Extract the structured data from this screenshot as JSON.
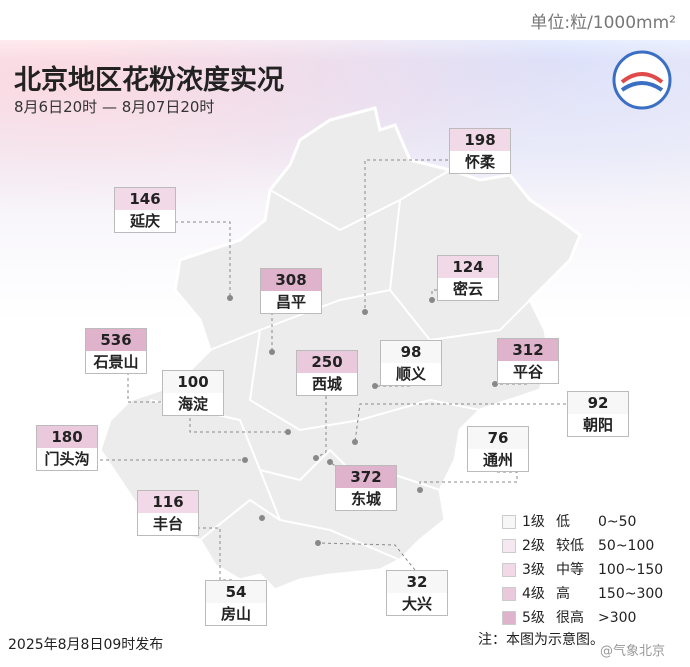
{
  "unit": "单位:粒/1000mm²",
  "title": "北京地区花粉浓度实况",
  "period": "8月6日20时 — 8月07日20时",
  "districts": [
    {
      "name": "怀柔",
      "value": 198
    },
    {
      "name": "延庆",
      "value": 146
    },
    {
      "name": "昌平",
      "value": 308
    },
    {
      "name": "密云",
      "value": 124
    },
    {
      "name": "石景山",
      "value": 536
    },
    {
      "name": "西城",
      "value": 250
    },
    {
      "name": "顺义",
      "value": 98
    },
    {
      "name": "平谷",
      "value": 312
    },
    {
      "name": "海淀",
      "value": 100
    },
    {
      "name": "朝阳",
      "value": 92
    },
    {
      "name": "门头沟",
      "value": 180
    },
    {
      "name": "通州",
      "value": 76
    },
    {
      "name": "东城",
      "value": 372
    },
    {
      "name": "丰台",
      "value": 116
    },
    {
      "name": "房山",
      "value": 54
    },
    {
      "name": "大兴",
      "value": 32
    }
  ],
  "legend": [
    {
      "level": "1级",
      "desc": "低",
      "range": "0~50"
    },
    {
      "level": "2级",
      "desc": "较低",
      "range": "50~100"
    },
    {
      "level": "3级",
      "desc": "中等",
      "range": "100~150"
    },
    {
      "level": "4级",
      "desc": "高",
      "range": "150~300"
    },
    {
      "level": "5级",
      "desc": "很高",
      "range": ">300"
    }
  ],
  "published": "2025年8月8日09时发布",
  "note": "注：本图为示意图。",
  "watermark": "@气象北京"
}
